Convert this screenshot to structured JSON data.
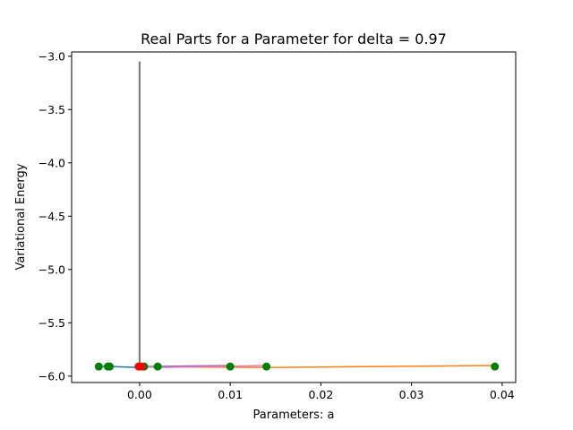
{
  "chart_data": {
    "type": "line",
    "title": "Real Parts for a Parameter for delta = 0.97",
    "xlabel": "Parameters: a",
    "ylabel": "Variational Energy",
    "xlim": [
      -0.0075,
      0.0415
    ],
    "ylim": [
      -6.06,
      -2.96
    ],
    "xticks": [
      0.0,
      0.01,
      0.02,
      0.03,
      0.04
    ],
    "xtick_labels": [
      "0.00",
      "0.01",
      "0.02",
      "0.03",
      "0.04"
    ],
    "yticks": [
      -3.0,
      -3.5,
      -4.0,
      -4.5,
      -5.0,
      -5.5,
      -6.0
    ],
    "ytick_labels": [
      "−3.0",
      "−3.5",
      "−4.0",
      "−4.5",
      "−5.0",
      "−5.5",
      "−6.0"
    ],
    "grid": false,
    "series": [
      {
        "color": "#1f77b4",
        "x": [
          -0.0045,
          -0.0035,
          -0.0033,
          0.0,
          0.0005,
          0.002
        ],
        "y": [
          -5.91,
          -5.91,
          -5.91,
          -5.92,
          -5.91,
          -5.92
        ]
      },
      {
        "color": "#ff7f0e",
        "x": [
          0.0,
          0.014,
          0.0392
        ],
        "y": [
          -5.91,
          -5.92,
          -5.9
        ]
      },
      {
        "color": "#9467bd",
        "x": [
          0.0,
          0.0005,
          0.01
        ],
        "y": [
          -5.92,
          -5.91,
          -5.9
        ]
      },
      {
        "color": "#e377c2",
        "x": [
          0.0005,
          0.002,
          0.014
        ],
        "y": [
          -5.91,
          -5.92,
          -5.9
        ]
      },
      {
        "color": "#8c564b",
        "x": [
          0.0,
          0.0
        ],
        "y": [
          -5.92,
          -3.05
        ]
      },
      {
        "color": "#7f7f7f",
        "x": [
          0.0,
          0.0
        ],
        "y": [
          -5.92,
          -3.05
        ]
      }
    ],
    "points_green": {
      "color": "#008000",
      "x": [
        -0.0045,
        -0.0035,
        -0.0033,
        0.0005,
        0.002,
        0.01,
        0.014,
        0.0392
      ],
      "y": [
        -5.91,
        -5.91,
        -5.91,
        -5.91,
        -5.91,
        -5.91,
        -5.91,
        -5.91
      ]
    },
    "points_red": {
      "color": "#ff0000",
      "x": [
        -0.0001,
        0.0002
      ],
      "y": [
        -5.91,
        -5.91
      ]
    }
  }
}
